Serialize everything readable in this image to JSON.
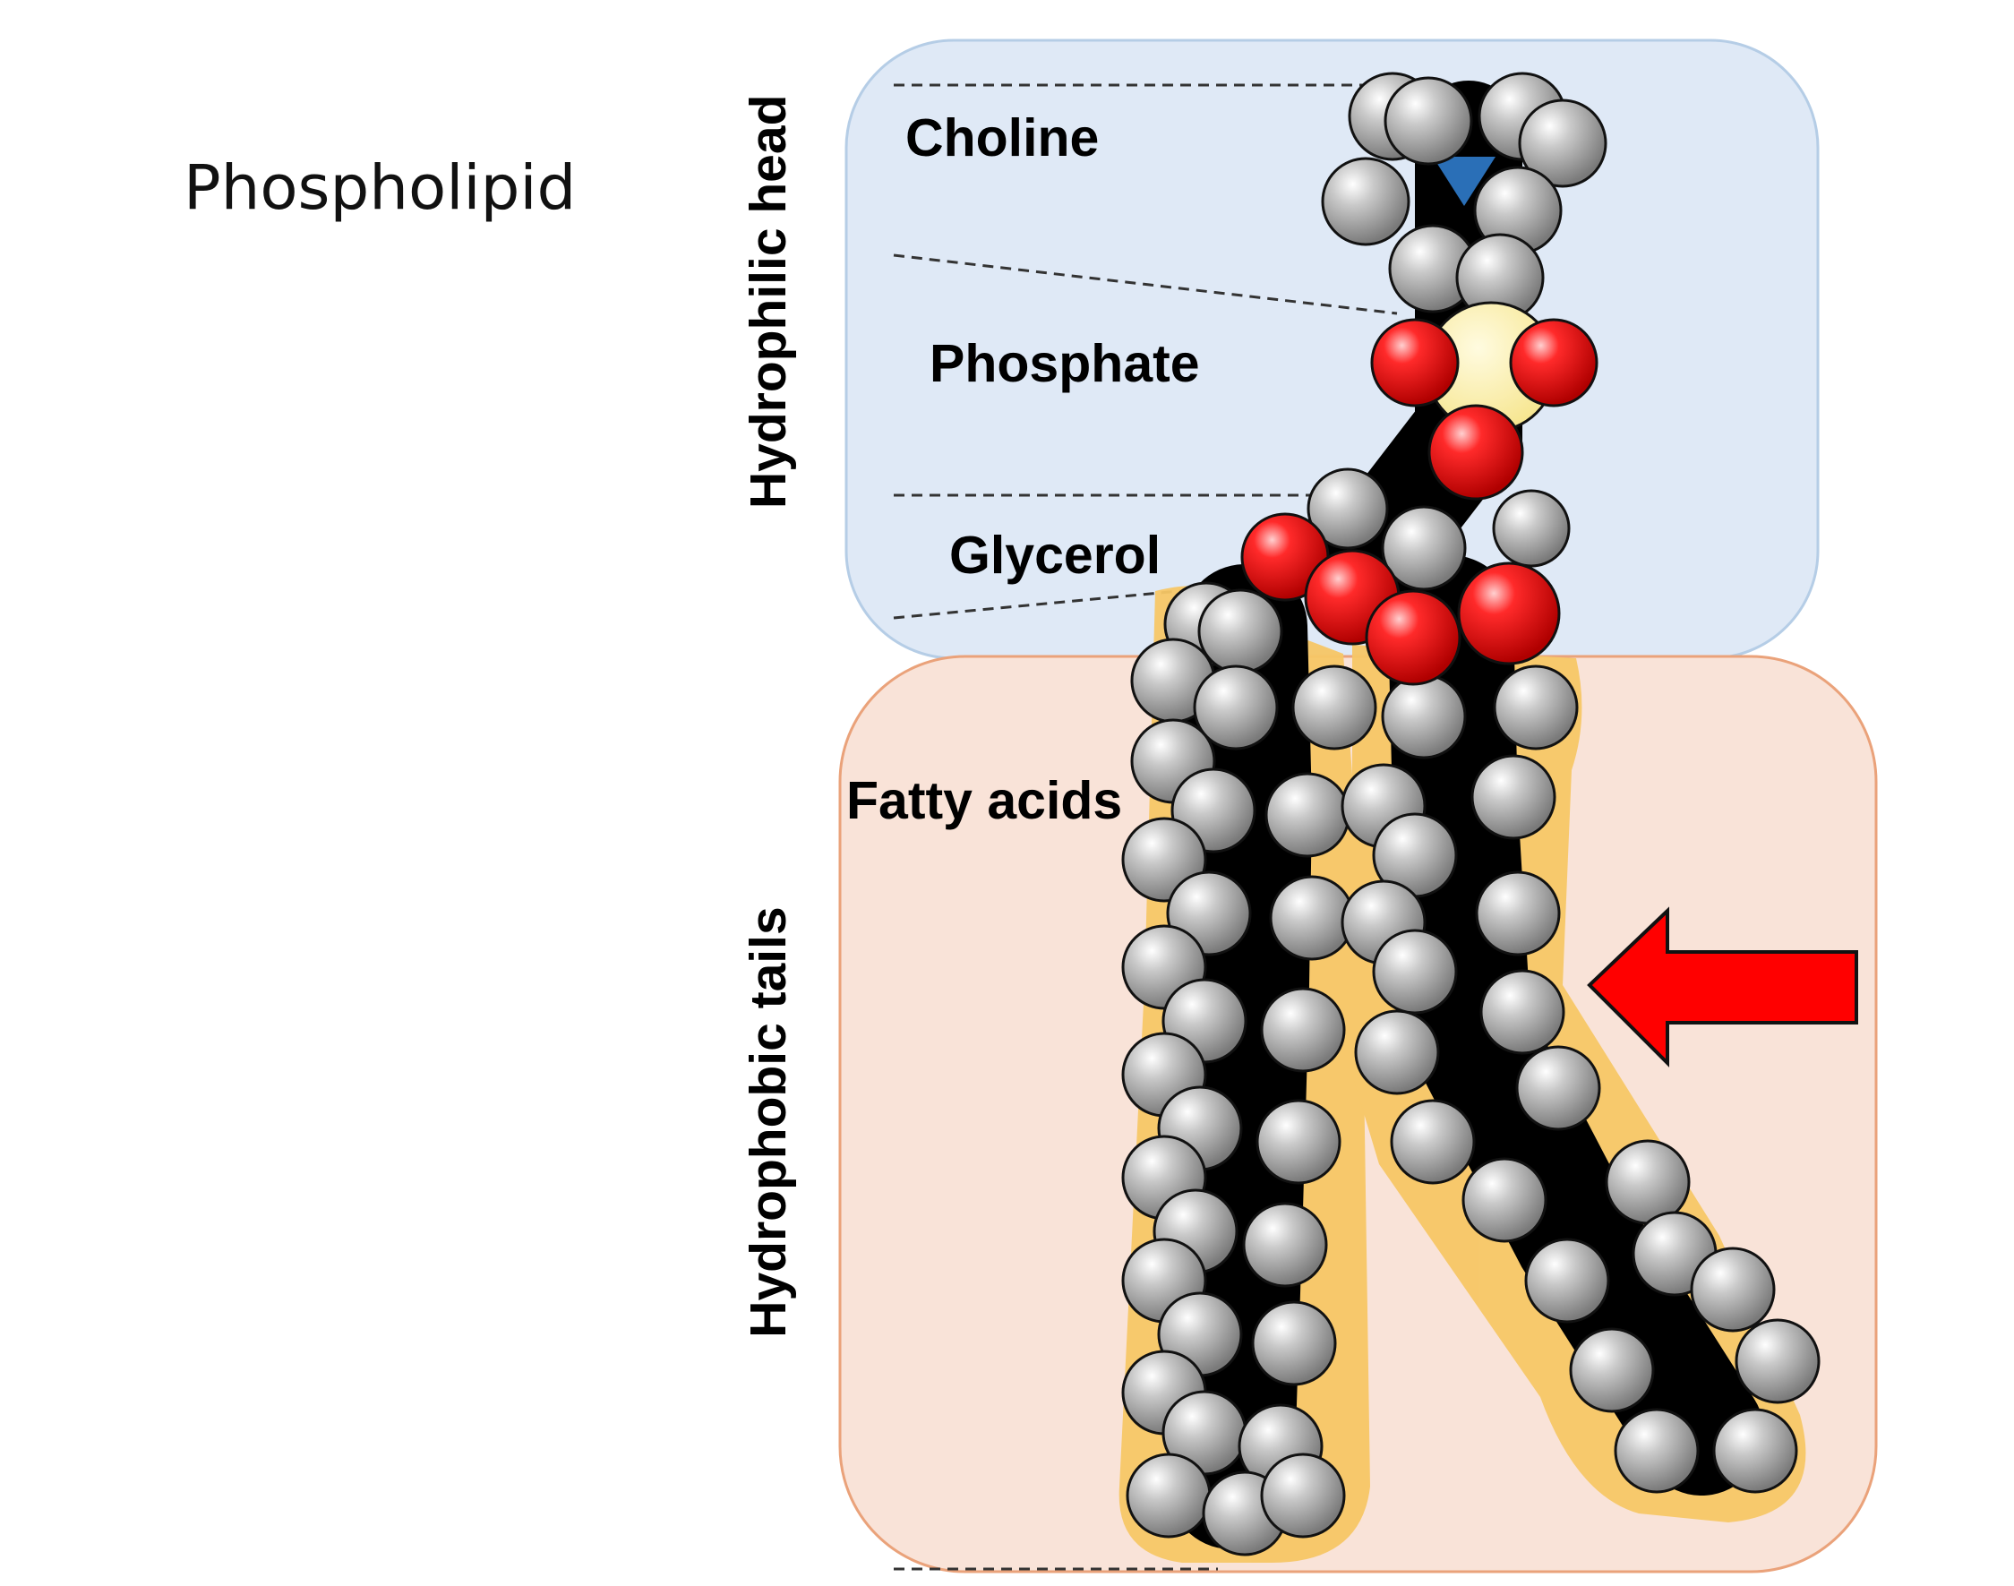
{
  "title": "Phospholipid",
  "sections": {
    "head_label": "Hydrophilic head",
    "tail_label": "Hydrophobic tails"
  },
  "labels": {
    "choline": "Choline",
    "phosphate": "Phosphate",
    "glycerol": "Glycerol",
    "fatty_acids": "Fatty acids"
  },
  "colors": {
    "head_box_fill": "#dfe9f6",
    "head_box_stroke": "#b5cde6",
    "tail_box_fill": "#f9e3d8",
    "tail_box_stroke": "#eaa27a",
    "tail_glow": "#f7c766",
    "hydrogen_atom": "#9b9b9b",
    "carbon_atom": "#000000",
    "oxygen_atom": "#e01818",
    "phosphorus_atom": "#fbeea0",
    "nitrogen_atom": "#2a6fb7",
    "arrow": "#ff0000"
  }
}
